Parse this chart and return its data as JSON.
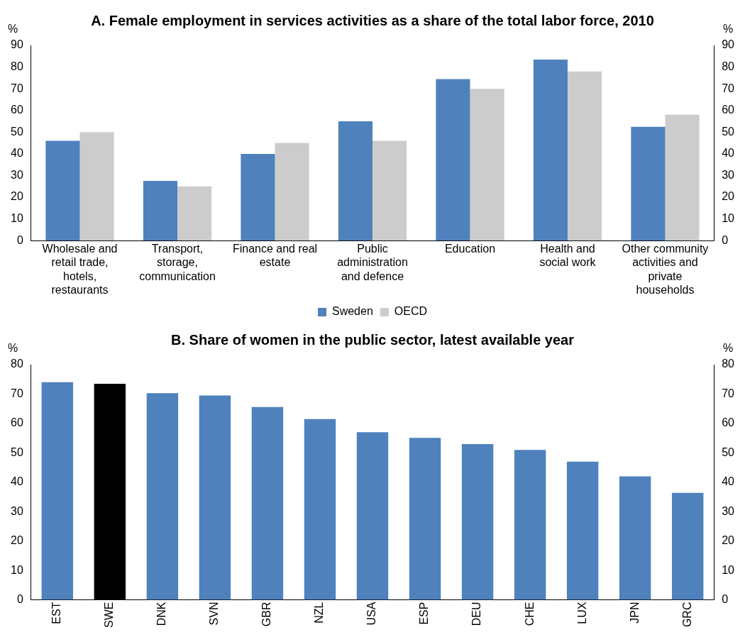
{
  "chart_data": [
    {
      "type": "bar",
      "title": "A. Female employment in services activities as a share of the total labor force, 2010",
      "ylabel": "%",
      "y2label": "%",
      "categories": [
        "Wholesale and retail trade, hotels, restaurants",
        "Transport, storage, communication",
        "Finance and real estate",
        "Public administration and defence",
        "Education",
        "Health and social work",
        "Other community activities and private households"
      ],
      "series": [
        {
          "name": "Sweden",
          "color": "#4f81bd",
          "values": [
            46,
            27.5,
            40,
            55,
            74.5,
            83.5,
            52.5
          ]
        },
        {
          "name": "OECD",
          "color": "#cccccc",
          "values": [
            50,
            25,
            45,
            46,
            70,
            78,
            58
          ]
        }
      ],
      "ylim": [
        0,
        90
      ],
      "yticks": [
        0,
        10,
        20,
        30,
        40,
        50,
        60,
        70,
        80,
        90
      ],
      "y2lim": [
        0,
        90
      ],
      "y2ticks": [
        0,
        10,
        20,
        30,
        40,
        50,
        60,
        70,
        80,
        90
      ],
      "legend": "bottom",
      "grid": false
    },
    {
      "type": "bar",
      "title": "B. Share of women in the public sector, latest available year",
      "ylabel": "%",
      "y2label": "%",
      "categories": [
        "EST",
        "SWE",
        "DNK",
        "SVN",
        "GBR",
        "NZL",
        "USA",
        "ESP",
        "DEU",
        "CHE",
        "LUX",
        "JPN",
        "GRC"
      ],
      "values": [
        74,
        73.5,
        70.3,
        69.5,
        65.6,
        61.5,
        57,
        55.1,
        53,
        51,
        47,
        42,
        36.4
      ],
      "colors": [
        "#4f81bd",
        "#000000",
        "#4f81bd",
        "#4f81bd",
        "#4f81bd",
        "#4f81bd",
        "#4f81bd",
        "#4f81bd",
        "#4f81bd",
        "#4f81bd",
        "#4f81bd",
        "#4f81bd",
        "#4f81bd"
      ],
      "ylim": [
        0,
        80
      ],
      "yticks": [
        0,
        10,
        20,
        30,
        40,
        50,
        60,
        70,
        80
      ],
      "y2lim": [
        0,
        80
      ],
      "y2ticks": [
        0,
        10,
        20,
        30,
        40,
        50,
        60,
        70,
        80
      ],
      "legend": false,
      "grid": false
    }
  ]
}
